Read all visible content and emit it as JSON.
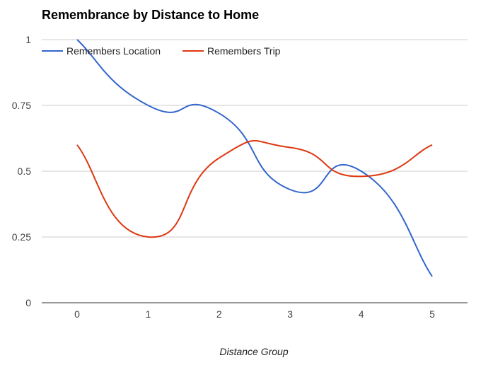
{
  "chart_data": {
    "type": "line",
    "title": "Remembrance by Distance to Home",
    "xlabel": "Distance Group",
    "ylabel": "",
    "x": [
      0,
      1,
      2,
      3,
      4,
      5
    ],
    "x_tick_labels": [
      "0",
      "1",
      "2",
      "3",
      "4",
      "5"
    ],
    "y_tick_labels": [
      "0",
      "0.25",
      "0.5",
      "0.75",
      "1"
    ],
    "ylim": [
      0,
      1
    ],
    "grid": true,
    "smooth": true,
    "legend_position": "top-left",
    "series": [
      {
        "name": "Remembers Location",
        "color": "#3366cc",
        "values": [
          1.0,
          0.75,
          0.72,
          0.43,
          0.5,
          0.1
        ]
      },
      {
        "name": "Remembers Trip",
        "color": "#dc3912",
        "values": [
          0.6,
          0.25,
          0.55,
          0.59,
          0.48,
          0.6
        ]
      }
    ]
  }
}
